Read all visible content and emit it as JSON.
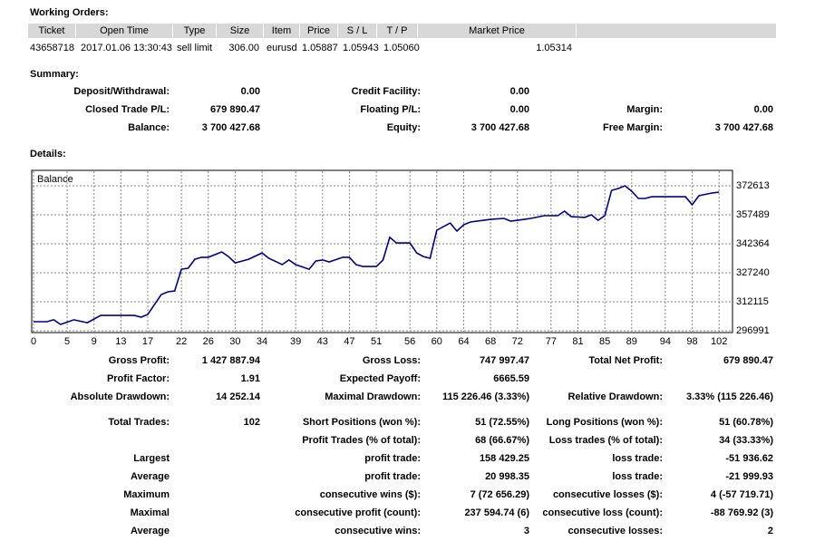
{
  "working_orders": {
    "title": "Working Orders:",
    "headers": [
      "Ticket",
      "Open Time",
      "Type",
      "Size",
      "Item",
      "Price",
      "S / L",
      "T / P",
      "Market Price"
    ],
    "rows": [
      [
        "43658718",
        "2017.01.06 13:30:43",
        "sell limit",
        "306.00",
        "eurusd",
        "1.05887",
        "1.05943",
        "1.05060",
        "1.05314"
      ]
    ]
  },
  "summary": {
    "title": "Summary:",
    "rows": [
      [
        "Deposit/Withdrawal:",
        "0.00",
        "Credit Facility:",
        "0.00",
        null,
        null
      ],
      [
        "Closed Trade P/L:",
        "679 890.47",
        "Floating P/L:",
        "0.00",
        "Margin:",
        "0.00"
      ],
      [
        "Balance:",
        "3 700 427.68",
        "Equity:",
        "3 700 427.68",
        "Free Margin:",
        "3 700 427.68"
      ]
    ]
  },
  "details": {
    "title": "Details:",
    "rows": [
      [
        "Gross Profit:",
        "1 427 887.94",
        "Gross Loss:",
        "747 997.47",
        "Total Net Profit:",
        "679 890.47"
      ],
      [
        "Profit Factor:",
        "1.91",
        "Expected Payoff:",
        "6665.59",
        null,
        null
      ],
      [
        "Absolute Drawdown:",
        "14 252.14",
        "Maximal Drawdown:",
        "115 226.46 (3.33%)",
        "Relative Drawdown:",
        "3.33% (115 226.46)"
      ],
      [
        "Total Trades:",
        "102",
        "Short Positions (won %):",
        "51 (72.55%)",
        "Long Positions (won %):",
        "51 (60.78%)"
      ],
      [
        null,
        null,
        "Profit Trades (% of total):",
        "68 (66.67%)",
        "Loss trades (% of total):",
        "34 (33.33%)"
      ],
      [
        "Largest",
        null,
        "profit trade:",
        "158 429.25",
        "loss trade:",
        "-51 936.62"
      ],
      [
        "Average",
        null,
        "profit trade:",
        "20 998.35",
        "loss trade:",
        "-21 999.93"
      ],
      [
        "Maximum",
        null,
        "consecutive wins ($):",
        "7 (72 656.29)",
        "consecutive losses ($):",
        "4 (-57 719.71)"
      ],
      [
        "Maximal",
        null,
        "consecutive profit (count):",
        "237 594.74 (6)",
        "consecutive loss (count):",
        "-88 769.92 (3)"
      ],
      [
        "Average",
        null,
        "consecutive wins:",
        "3",
        "consecutive losses:",
        "2"
      ]
    ]
  },
  "chart_data": {
    "type": "line",
    "x": [
      0,
      2,
      3,
      4,
      6,
      8,
      10,
      15,
      16,
      17,
      19,
      20,
      21,
      22,
      23,
      24,
      25,
      26,
      28,
      29,
      30,
      32,
      34,
      35,
      37,
      38,
      39,
      41,
      42,
      43,
      44,
      46,
      47,
      48,
      49,
      51,
      52,
      53,
      54,
      56,
      57,
      58,
      59,
      60,
      61,
      62,
      63,
      64,
      65,
      68,
      70,
      71,
      72,
      73,
      74,
      76,
      77,
      78,
      79,
      80,
      82,
      83,
      84,
      85,
      86,
      87,
      88,
      89,
      90,
      91,
      92,
      95,
      97,
      98,
      99,
      101,
      102
    ],
    "series": [
      {
        "name": "Balance",
        "color": "#00008b",
        "values": [
          301700,
          301700,
          302700,
          300300,
          302700,
          301200,
          305000,
          305000,
          304100,
          305500,
          315900,
          317300,
          317800,
          329100,
          329600,
          334300,
          335300,
          335300,
          338100,
          335700,
          332400,
          334300,
          337600,
          334800,
          331500,
          333900,
          331500,
          329100,
          333400,
          333900,
          332900,
          335300,
          335300,
          331500,
          330500,
          330500,
          333900,
          345700,
          342800,
          342800,
          337600,
          335700,
          334800,
          349400,
          351300,
          353200,
          349000,
          352300,
          353700,
          355100,
          355600,
          354200,
          354600,
          355100,
          355600,
          357000,
          357000,
          357000,
          359400,
          356500,
          356100,
          357500,
          354600,
          357000,
          370200,
          371200,
          372600,
          369800,
          366000,
          366000,
          366900,
          366900,
          366900,
          362700,
          367400,
          368900,
          369300
        ]
      }
    ],
    "xlim": [
      0,
      104
    ],
    "xticks": [
      0,
      5,
      9,
      13,
      17,
      22,
      26,
      30,
      34,
      39,
      43,
      47,
      51,
      56,
      60,
      64,
      68,
      72,
      77,
      81,
      85,
      89,
      94,
      98,
      102
    ],
    "ylim": [
      296046,
      380647
    ],
    "yticks": [
      296991,
      312115,
      327240,
      342364,
      357489,
      372613
    ],
    "grid": true
  }
}
